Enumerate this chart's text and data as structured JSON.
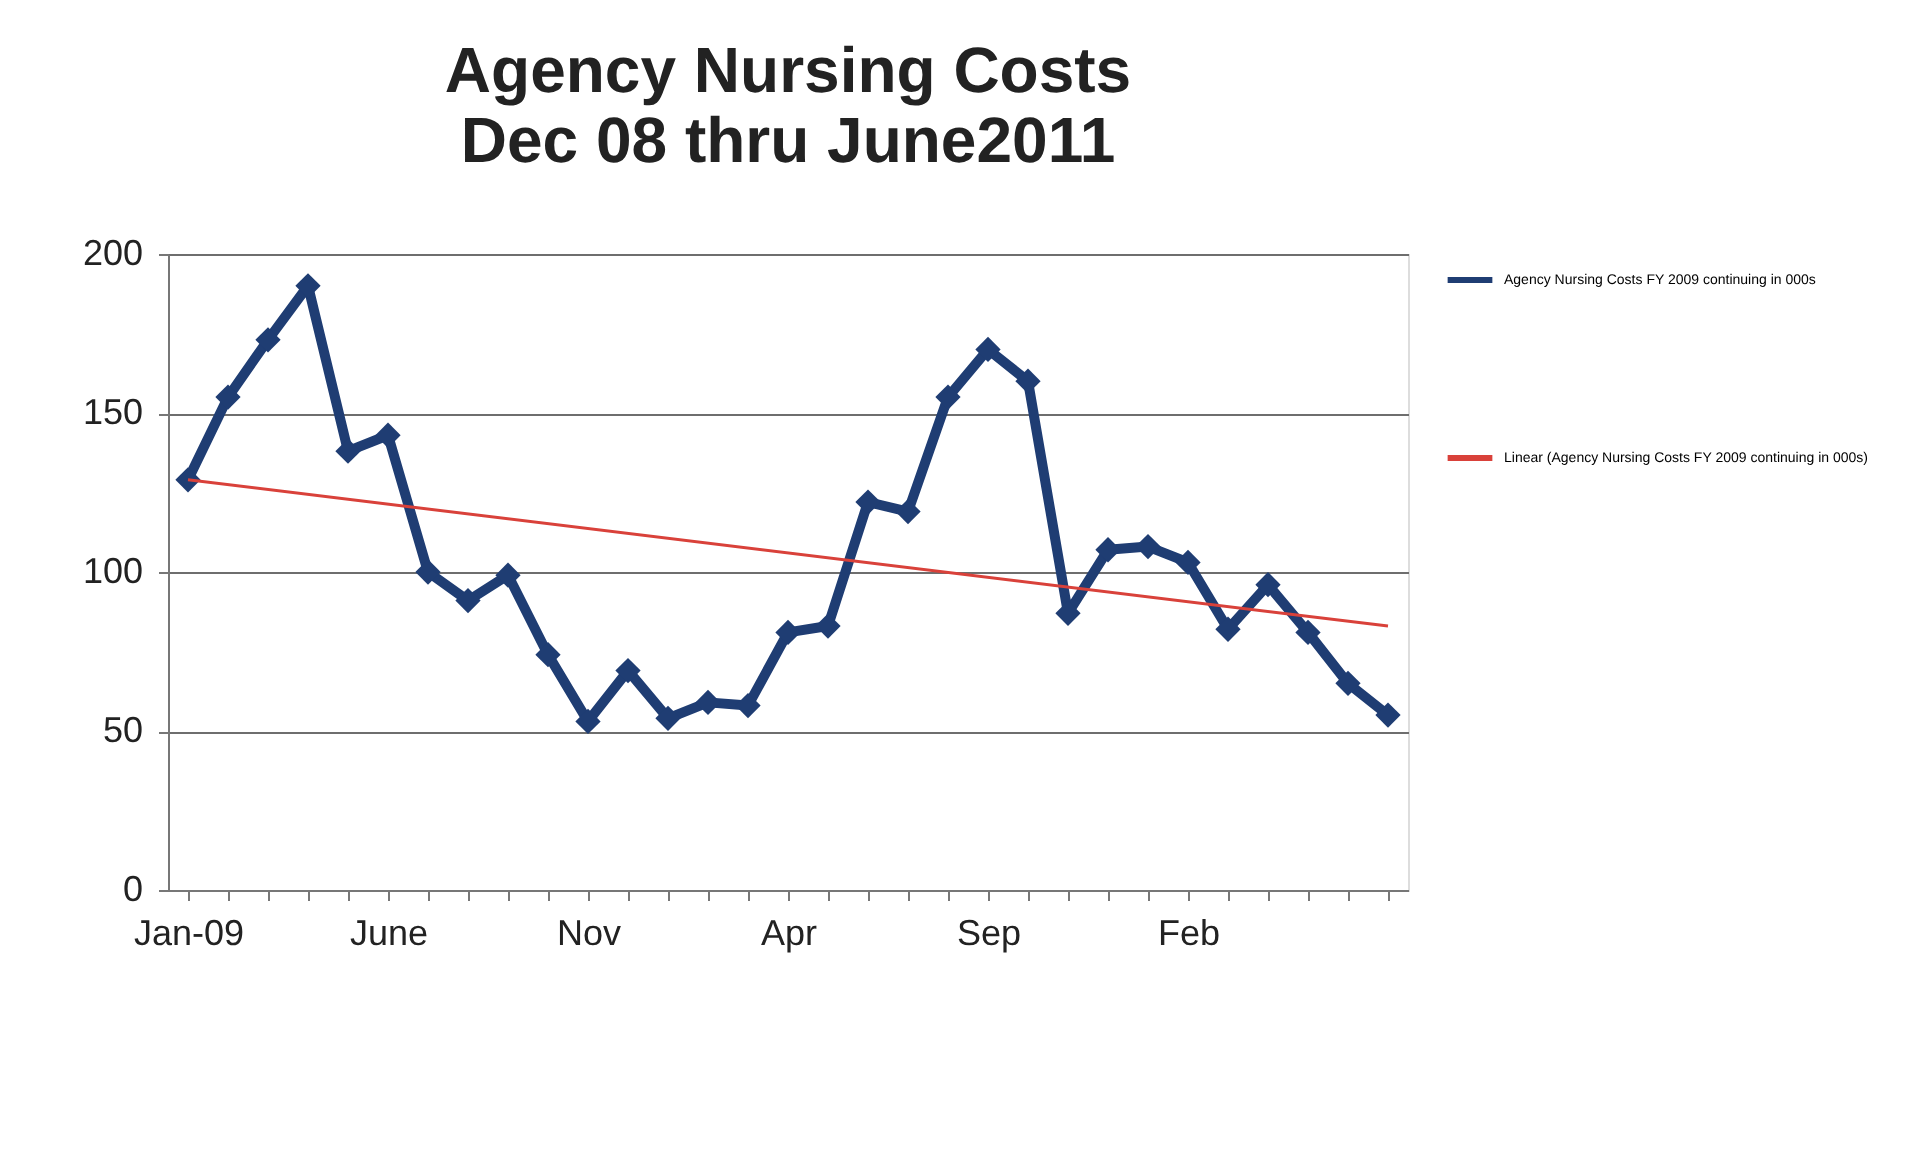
{
  "chart_data": {
    "type": "line",
    "title": "Agency Nursing Costs",
    "subtitle": "Dec 08 thru June2011",
    "categories": [
      "Jan-09",
      null,
      null,
      null,
      null,
      "June",
      null,
      null,
      null,
      null,
      "Nov",
      null,
      null,
      null,
      null,
      "Apr",
      null,
      null,
      null,
      null,
      "Sep",
      null,
      null,
      null,
      null,
      "Feb",
      null,
      null,
      null,
      null,
      null
    ],
    "series": [
      {
        "name": "Agency Nursing Costs FY 2009 continuing in 000s",
        "color": "#1f3d73",
        "marker": "diamond",
        "values": [
          129,
          155,
          173,
          190,
          138,
          143,
          100,
          91,
          99,
          74,
          53,
          69,
          54,
          59,
          58,
          81,
          83,
          122,
          119,
          155,
          170,
          160,
          87,
          107,
          108,
          103,
          82,
          96,
          81,
          65,
          55
        ]
      },
      {
        "name": "Linear (Agency Nursing Costs FY 2009 continuing in 000s)",
        "color": "#d9413a",
        "marker": "none",
        "values": [
          129,
          null,
          null,
          null,
          null,
          null,
          null,
          null,
          null,
          null,
          null,
          null,
          null,
          null,
          null,
          null,
          null,
          null,
          null,
          null,
          null,
          null,
          null,
          null,
          null,
          null,
          null,
          null,
          null,
          null,
          83
        ]
      }
    ],
    "ylim": [
      0,
      200
    ],
    "yticks": [
      0,
      50,
      100,
      150,
      200
    ],
    "grid": "y",
    "legend": "right"
  }
}
